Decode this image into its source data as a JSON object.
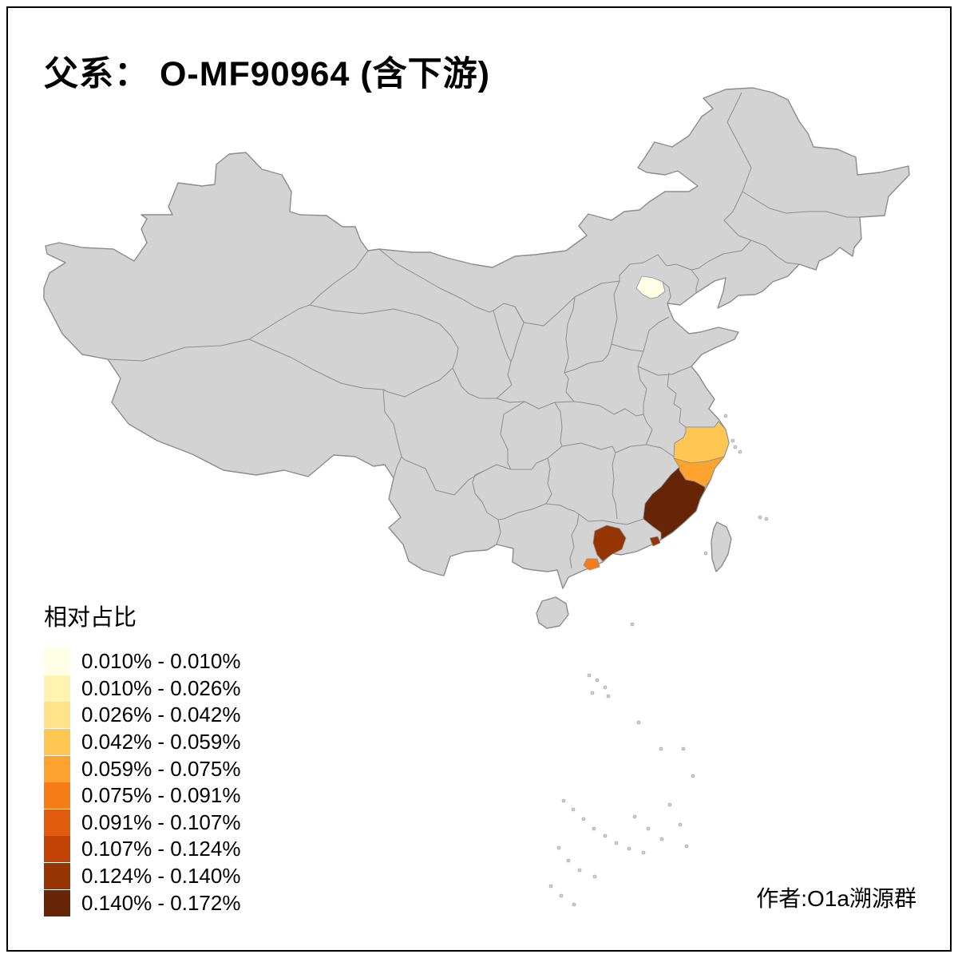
{
  "title": {
    "text": "父系： O-MF90964 (含下游)"
  },
  "legend": {
    "title": "相对占比",
    "items": [
      {
        "label": "0.010% - 0.010%",
        "color": "#ffffe5"
      },
      {
        "label": "0.010% - 0.026%",
        "color": "#fff3b0"
      },
      {
        "label": "0.026% - 0.042%",
        "color": "#fee38b"
      },
      {
        "label": "0.042% - 0.059%",
        "color": "#fec754"
      },
      {
        "label": "0.059% - 0.075%",
        "color": "#fea230"
      },
      {
        "label": "0.075% - 0.091%",
        "color": "#f57c17"
      },
      {
        "label": "0.091% - 0.107%",
        "color": "#e05b0d"
      },
      {
        "label": "0.107% - 0.124%",
        "color": "#c34406"
      },
      {
        "label": "0.124% - 0.140%",
        "color": "#963504"
      },
      {
        "label": "0.140% - 0.172%",
        "color": "#662506"
      }
    ]
  },
  "attribution": {
    "text": "作者:O1a溯源群"
  },
  "map": {
    "land_color": "#d3d3d3",
    "border_color": "#8c8c8c",
    "no_data_color": "#d3d3d3",
    "regions": [
      {
        "id": "beijing",
        "bin": "0.010% - 0.010%",
        "color": "#ffffe5"
      },
      {
        "id": "zhejiang-north",
        "bin": "0.042% - 0.059%",
        "color": "#fec754"
      },
      {
        "id": "zhejiang-south",
        "bin": "0.059% - 0.075%",
        "color": "#fea230"
      },
      {
        "id": "fujian",
        "bin": "0.140% - 0.172%",
        "color": "#662506"
      },
      {
        "id": "pearl-river-delta",
        "bin": "0.124% - 0.140%",
        "color": "#963504"
      },
      {
        "id": "east-guangdong-coast",
        "bin": "0.124% - 0.140%",
        "color": "#963504"
      },
      {
        "id": "southwest-guangdong-coast",
        "bin": "0.075% - 0.091%",
        "color": "#f57c17"
      }
    ]
  },
  "chart_data": {
    "type": "choropleth",
    "title": "父系： O-MF90964 (含下游)",
    "legend_title": "相对占比",
    "bins": [
      "0.010% - 0.010%",
      "0.010% - 0.026%",
      "0.026% - 0.042%",
      "0.042% - 0.059%",
      "0.059% - 0.075%",
      "0.075% - 0.091%",
      "0.091% - 0.107%",
      "0.107% - 0.124%",
      "0.124% - 0.140%",
      "0.140% - 0.172%"
    ],
    "colors": [
      "#ffffe5",
      "#fff3b0",
      "#fee38b",
      "#fec754",
      "#fea230",
      "#f57c17",
      "#e05b0d",
      "#c34406",
      "#963504",
      "#662506"
    ],
    "regions": [
      {
        "region": "beijing",
        "bin_index": 0
      },
      {
        "region": "zhejiang-north",
        "bin_index": 3
      },
      {
        "region": "zhejiang-south",
        "bin_index": 4
      },
      {
        "region": "fujian",
        "bin_index": 9
      },
      {
        "region": "pearl-river-delta",
        "bin_index": 8
      },
      {
        "region": "east-guangdong-coast",
        "bin_index": 8
      },
      {
        "region": "southwest-guangdong-coast",
        "bin_index": 5
      }
    ],
    "annotation": "作者:O1a溯源群"
  }
}
